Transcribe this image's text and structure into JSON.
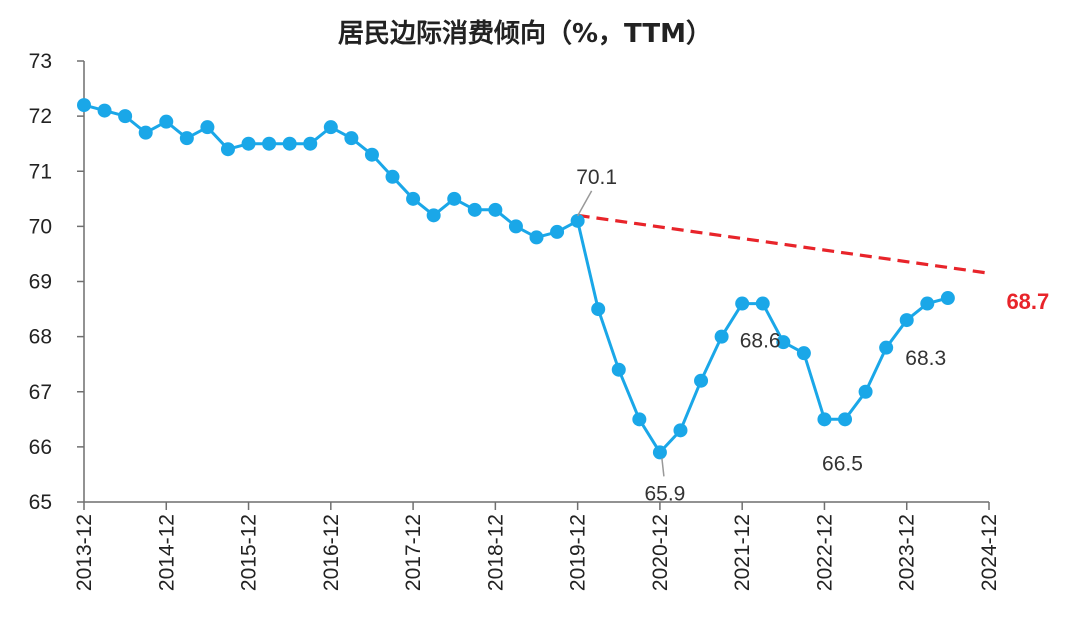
{
  "colors": {
    "series": "#1AA7E8",
    "trend": "#E8242A",
    "axis": "#6f6f6f",
    "text": "#222222",
    "leader": "#999999"
  },
  "chart_data": {
    "type": "line",
    "title": "居民边际消费倾向（%，TTM）",
    "xlabel": "",
    "ylabel": "",
    "ylim": [
      65,
      73
    ],
    "yticks": [
      "65",
      "66",
      "67",
      "68",
      "69",
      "70",
      "71",
      "72",
      "73"
    ],
    "xticks": [
      "2013-12",
      "2014-12",
      "2015-12",
      "2016-12",
      "2017-12",
      "2018-12",
      "2019-12",
      "2020-12",
      "2021-12",
      "2022-12",
      "2023-12",
      "2024-12"
    ],
    "grid": false,
    "series": [
      {
        "frequency": "quarterly",
        "x": [
          "2013-12",
          "2014-03",
          "2014-06",
          "2014-09",
          "2014-12",
          "2015-03",
          "2015-06",
          "2015-09",
          "2015-12",
          "2016-03",
          "2016-06",
          "2016-09",
          "2016-12",
          "2017-03",
          "2017-06",
          "2017-09",
          "2017-12",
          "2018-03",
          "2018-06",
          "2018-09",
          "2018-12",
          "2019-03",
          "2019-06",
          "2019-09",
          "2019-12",
          "2020-03",
          "2020-06",
          "2020-09",
          "2020-12",
          "2021-03",
          "2021-06",
          "2021-09",
          "2021-12",
          "2022-03",
          "2022-06",
          "2022-09",
          "2022-12",
          "2023-03",
          "2023-06",
          "2023-09",
          "2023-12",
          "2024-03",
          "2024-06"
        ],
        "values": [
          72.2,
          72.1,
          72.0,
          71.7,
          71.9,
          71.6,
          71.8,
          71.4,
          71.5,
          71.5,
          71.5,
          71.5,
          71.8,
          71.6,
          71.3,
          70.9,
          70.5,
          70.2,
          70.5,
          70.3,
          70.3,
          70.0,
          69.8,
          69.9,
          70.1,
          68.5,
          67.4,
          66.5,
          65.9,
          66.3,
          67.2,
          68.0,
          68.6,
          68.6,
          67.9,
          67.7,
          66.5,
          66.5,
          67.0,
          67.8,
          68.3,
          68.6,
          68.7
        ]
      }
    ],
    "trend_line": {
      "x": [
        "2019-12",
        "2024-12"
      ],
      "values": [
        70.2,
        69.15
      ]
    },
    "annotations": [
      {
        "text": "70.1",
        "x": "2019-12",
        "value": 70.1,
        "leader": true
      },
      {
        "text": "65.9",
        "x": "2020-12",
        "value": 65.9,
        "leader": true
      },
      {
        "text": "68.6",
        "x": "2021-12",
        "value": 68.6,
        "leader": false
      },
      {
        "text": "66.5",
        "x": "2022-12",
        "value": 66.5,
        "leader": false
      },
      {
        "text": "68.3",
        "x": "2023-12",
        "value": 68.3,
        "leader": false
      },
      {
        "text": "68.7",
        "x": "2024-06",
        "value": 68.7,
        "leader": false,
        "emphasis": true
      }
    ]
  }
}
